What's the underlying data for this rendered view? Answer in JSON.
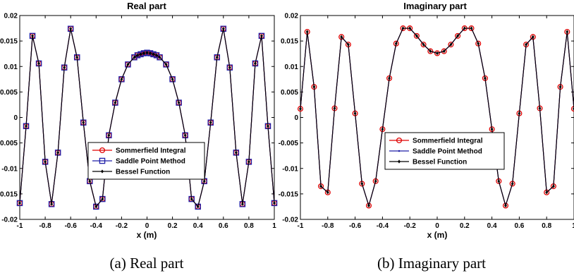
{
  "chart_data": [
    {
      "type": "line",
      "title": "Real part",
      "xlabel": "x (m)",
      "ylabel": "",
      "caption": "(a) Real part",
      "xlim": [
        -1,
        1
      ],
      "ylim": [
        -0.02,
        0.02
      ],
      "xticks": [
        -1,
        -0.8,
        -0.6,
        -0.4,
        -0.2,
        0,
        0.2,
        0.4,
        0.6,
        0.8,
        1
      ],
      "xtick_labels": [
        "-1",
        "-0.8",
        "-0.6",
        "-0.4",
        "-0.2",
        "0",
        "0.2",
        "0.4",
        "0.6",
        "0.8",
        "1"
      ],
      "yticks": [
        -0.02,
        -0.015,
        -0.01,
        -0.005,
        0,
        0.005,
        0.01,
        0.015,
        0.02
      ],
      "ytick_labels": [
        "-0.02",
        "-0.015",
        "-0.01",
        "-0.005",
        "0",
        "0.005",
        "0.01",
        "0.015",
        "0.02"
      ],
      "legend_position": "lower-center",
      "x": [
        -1.0,
        -0.95,
        -0.9,
        -0.85,
        -0.8,
        -0.75,
        -0.7,
        -0.65,
        -0.6,
        -0.55,
        -0.5,
        -0.45,
        -0.4,
        -0.35,
        -0.3,
        -0.25,
        -0.2,
        -0.15,
        -0.1,
        -0.075,
        -0.05,
        -0.025,
        0.0,
        0.025,
        0.05,
        0.075,
        0.1,
        0.15,
        0.2,
        0.25,
        0.3,
        0.35,
        0.4,
        0.45,
        0.5,
        0.55,
        0.6,
        0.65,
        0.7,
        0.75,
        0.8,
        0.85,
        0.9,
        0.95,
        1.0
      ],
      "series": [
        {
          "name": "Sommerfield Integral",
          "color": "#e00000",
          "marker": "circle",
          "values": [
            -0.0168,
            -0.0017,
            0.016,
            0.0106,
            -0.0087,
            -0.017,
            -0.0069,
            0.0098,
            0.0174,
            0.0118,
            -0.001,
            -0.0125,
            -0.0175,
            -0.016,
            -0.0035,
            0.0029,
            0.0075,
            0.0104,
            0.0118,
            0.0122,
            0.0124,
            0.0126,
            0.0127,
            0.0126,
            0.0124,
            0.0122,
            0.0118,
            0.0104,
            0.0075,
            0.0029,
            -0.0035,
            -0.016,
            -0.0175,
            -0.0125,
            -0.001,
            0.0118,
            0.0174,
            0.0098,
            -0.0069,
            -0.017,
            -0.0087,
            0.0106,
            0.016,
            -0.0017,
            -0.0168
          ]
        },
        {
          "name": "Saddle Point Method",
          "color": "#1f1fa8",
          "marker": "square",
          "values": [
            -0.0168,
            -0.0017,
            0.016,
            0.0106,
            -0.0087,
            -0.017,
            -0.0069,
            0.0098,
            0.0174,
            0.0118,
            -0.001,
            -0.0125,
            -0.0175,
            -0.016,
            -0.0035,
            0.0029,
            0.0075,
            0.0104,
            0.0118,
            0.0122,
            0.0124,
            0.0126,
            0.0127,
            0.0126,
            0.0124,
            0.0122,
            0.0118,
            0.0104,
            0.0075,
            0.0029,
            -0.0035,
            -0.016,
            -0.0175,
            -0.0125,
            -0.001,
            0.0118,
            0.0174,
            0.0098,
            -0.0069,
            -0.017,
            -0.0087,
            0.0106,
            0.016,
            -0.0017,
            -0.0168
          ]
        },
        {
          "name": "Bessel Function",
          "color": "#000000",
          "marker": "diamond",
          "values": [
            -0.0168,
            -0.0017,
            0.016,
            0.0106,
            -0.0087,
            -0.017,
            -0.0069,
            0.0098,
            0.0174,
            0.0118,
            -0.001,
            -0.0125,
            -0.0175,
            -0.016,
            -0.0035,
            0.0029,
            0.0075,
            0.0104,
            0.0118,
            0.0122,
            0.0124,
            0.0126,
            0.0127,
            0.0126,
            0.0124,
            0.0122,
            0.0118,
            0.0104,
            0.0075,
            0.0029,
            -0.0035,
            -0.016,
            -0.0175,
            -0.0125,
            -0.001,
            0.0118,
            0.0174,
            0.0098,
            -0.0069,
            -0.017,
            -0.0087,
            0.0106,
            0.016,
            -0.0017,
            -0.0168
          ]
        }
      ]
    },
    {
      "type": "line",
      "title": "Imaginary part",
      "xlabel": "x (m)",
      "ylabel": "",
      "caption": "(b) Imaginary part",
      "xlim": [
        -1,
        1
      ],
      "ylim": [
        -0.02,
        0.02
      ],
      "xticks": [
        -1,
        -0.8,
        -0.6,
        -0.4,
        -0.2,
        0,
        0.2,
        0.4,
        0.6,
        0.8,
        1
      ],
      "xtick_labels": [
        "-1",
        "-0.8",
        "-0.6",
        "-0.4",
        "-0.2",
        "0",
        "0.2",
        "0.4",
        "0.6",
        "0.8",
        "1"
      ],
      "yticks": [
        -0.02,
        -0.015,
        -0.01,
        -0.005,
        0,
        0.005,
        0.01,
        0.015,
        0.02
      ],
      "ytick_labels": [
        "-0.02",
        "-0.015",
        "-0.01",
        "-0.005",
        "0",
        "0.005",
        "0.01",
        "0.015",
        "0.02"
      ],
      "legend_position": "lower-center",
      "x": [
        -1.0,
        -0.95,
        -0.9,
        -0.85,
        -0.8,
        -0.75,
        -0.7,
        -0.65,
        -0.6,
        -0.55,
        -0.5,
        -0.45,
        -0.4,
        -0.35,
        -0.3,
        -0.25,
        -0.2,
        -0.15,
        -0.1,
        -0.05,
        0.0,
        0.05,
        0.1,
        0.15,
        0.2,
        0.25,
        0.3,
        0.35,
        0.4,
        0.45,
        0.5,
        0.55,
        0.6,
        0.65,
        0.7,
        0.75,
        0.8,
        0.85,
        0.9,
        0.95,
        1.0
      ],
      "series": [
        {
          "name": "Sommerfield Integral",
          "color": "#e00000",
          "marker": "circle",
          "values": [
            0.0017,
            0.0168,
            0.006,
            -0.0135,
            -0.0147,
            0.0018,
            0.0158,
            0.0143,
            0.0008,
            -0.013,
            -0.0173,
            -0.0125,
            -0.0023,
            0.0077,
            0.0145,
            0.0175,
            0.0175,
            0.016,
            0.0143,
            0.013,
            0.0126,
            0.013,
            0.0143,
            0.016,
            0.0175,
            0.0175,
            0.0145,
            0.0077,
            -0.0023,
            -0.0125,
            -0.0173,
            -0.013,
            0.0008,
            0.0143,
            0.0158,
            0.0018,
            -0.0147,
            -0.0135,
            0.006,
            0.0168,
            0.0017
          ]
        },
        {
          "name": "Saddle Point Method",
          "color": "#1f1fa8",
          "marker": "dot",
          "values": [
            0.0017,
            0.0168,
            0.006,
            -0.0135,
            -0.0147,
            0.0018,
            0.0158,
            0.0143,
            0.0008,
            -0.013,
            -0.0173,
            -0.0125,
            -0.0023,
            0.0077,
            0.0145,
            0.0175,
            0.0175,
            0.016,
            0.0143,
            0.013,
            0.0126,
            0.013,
            0.0143,
            0.016,
            0.0175,
            0.0175,
            0.0145,
            0.0077,
            -0.0023,
            -0.0125,
            -0.0173,
            -0.013,
            0.0008,
            0.0143,
            0.0158,
            0.0018,
            -0.0147,
            -0.0135,
            0.006,
            0.0168,
            0.0017
          ]
        },
        {
          "name": "Bessel Function",
          "color": "#000000",
          "marker": "diamond",
          "values": [
            0.0017,
            0.0168,
            0.006,
            -0.0135,
            -0.0147,
            0.0018,
            0.0158,
            0.0143,
            0.0008,
            -0.013,
            -0.0173,
            -0.0125,
            -0.0023,
            0.0077,
            0.0145,
            0.0175,
            0.0175,
            0.016,
            0.0143,
            0.013,
            0.0126,
            0.013,
            0.0143,
            0.016,
            0.0175,
            0.0175,
            0.0145,
            0.0077,
            -0.0023,
            -0.0125,
            -0.0173,
            -0.013,
            0.0008,
            0.0143,
            0.0158,
            0.0018,
            -0.0147,
            -0.0135,
            0.006,
            0.0168,
            0.0017
          ]
        }
      ]
    }
  ]
}
